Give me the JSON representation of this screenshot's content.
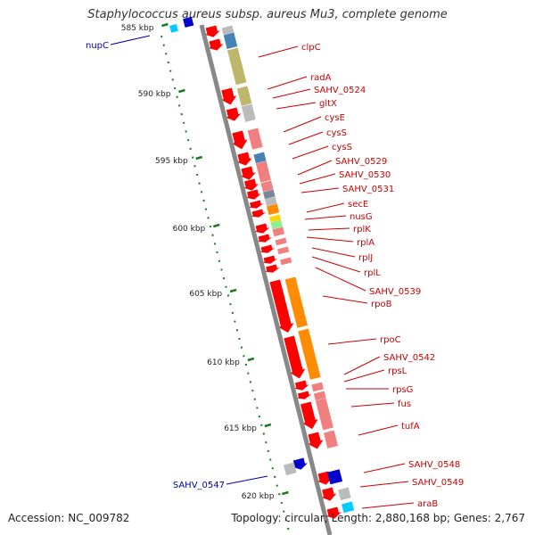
{
  "header": {
    "title": "Staphylococcus aureus subsp. aureus Mu3, complete genome"
  },
  "footer": {
    "accession": "Accession: NC_009782",
    "summary": "Topology: circular; Length: 2,880,168 bp; Genes: 2,767"
  },
  "colors": {
    "backbone": "#888888",
    "tick": "#1e7a1e",
    "gene_label": "#cc0000",
    "gene_label_alt": "#0000aa"
  },
  "scale_ticks": [
    "585 kbp",
    "590 kbp",
    "595 kbp",
    "600 kbp",
    "605 kbp",
    "610 kbp",
    "615 kbp",
    "620 kbp"
  ],
  "gene_labels_left": [
    "nupC",
    "SAHV_0547"
  ],
  "gene_labels_right": [
    "clpC",
    "radA",
    "SAHV_0524",
    "gltX",
    "cysE",
    "cysS",
    "cysS",
    "SAHV_0529",
    "SAHV_0530",
    "SAHV_0531",
    "secE",
    "nusG",
    "rplK",
    "rplA",
    "rplJ",
    "rplL",
    "SAHV_0539",
    "rpoB",
    "rpoC",
    "SAHV_0542",
    "rpsL",
    "rpsG",
    "fus",
    "tufA",
    "SAHV_0548",
    "SAHV_0549",
    "araB"
  ]
}
